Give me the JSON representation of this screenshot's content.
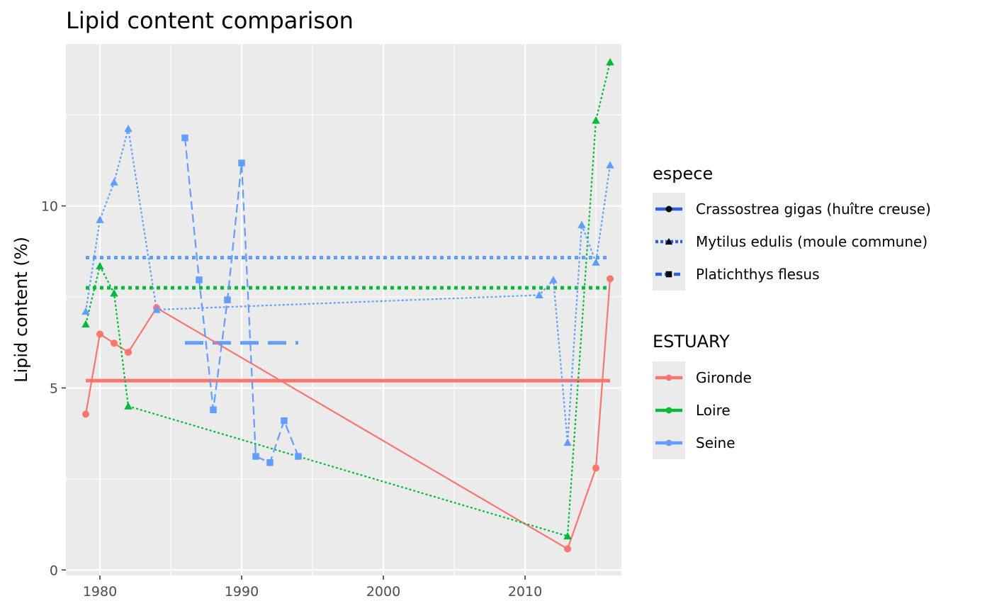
{
  "chart_data": {
    "type": "line",
    "title": "Lipid content comparison",
    "xlabel": "",
    "ylabel": "Lipid content (%)",
    "xlim": [
      1977.6,
      2016.8
    ],
    "ylim": [
      -0.15,
      14.45
    ],
    "x_ticks": [
      1980,
      1990,
      2000,
      2010
    ],
    "y_ticks": [
      0,
      5,
      10
    ],
    "grid": true,
    "legend_position": "right",
    "legends": [
      {
        "title": "espece",
        "entries": [
          {
            "label": "Crassostrea gigas (huître creuse)",
            "shape": "circle",
            "linetype": "solid"
          },
          {
            "label": "Mytilus edulis (moule commune)",
            "shape": "triangle",
            "linetype": "dotted"
          },
          {
            "label": "Platichthys flesus",
            "shape": "square",
            "linetype": "dashed"
          }
        ]
      },
      {
        "title": "ESTUARY",
        "entries": [
          {
            "label": "Gironde",
            "color": "#F8766D"
          },
          {
            "label": "Loire",
            "color": "#00BA38"
          },
          {
            "label": "Seine",
            "color": "#619CFF"
          }
        ]
      }
    ],
    "series": [
      {
        "estuary": "Gironde",
        "species": "Crassostrea gigas (huître creuse)",
        "color": "#F8766D",
        "shape": "circle",
        "linetype": "solid",
        "x": [
          1979,
          1980,
          1981,
          1982,
          1984,
          2013,
          2015,
          2016
        ],
        "y": [
          4.28,
          6.48,
          6.23,
          5.98,
          7.2,
          0.58,
          2.8,
          8.0
        ],
        "mean": 5.2,
        "mean_range": [
          1979,
          2016
        ]
      },
      {
        "estuary": "Loire",
        "species": "Mytilus edulis (moule commune)",
        "color": "#00BA38",
        "shape": "triangle",
        "linetype": "dotted",
        "x": [
          1979,
          1980,
          1981,
          1982,
          2013,
          2015,
          2016
        ],
        "y": [
          6.75,
          8.35,
          7.6,
          4.5,
          0.93,
          12.35,
          13.95
        ],
        "mean": 7.75,
        "mean_range": [
          1979,
          2016
        ]
      },
      {
        "estuary": "Seine",
        "species": "Mytilus edulis (moule commune)",
        "color": "#619CFF",
        "shape": "triangle",
        "linetype": "dotted",
        "x": [
          1979,
          1980,
          1981,
          1982,
          1984,
          2011,
          2012,
          2013,
          2014,
          2015,
          2016
        ],
        "y": [
          7.1,
          9.62,
          10.65,
          12.12,
          7.15,
          7.55,
          7.97,
          3.5,
          9.48,
          8.45,
          11.12
        ],
        "mean": 8.58,
        "mean_range": [
          1979,
          2016
        ]
      },
      {
        "estuary": "Seine",
        "species": "Platichthys flesus",
        "color": "#619CFF",
        "shape": "square",
        "linetype": "dashed",
        "x": [
          1986,
          1987,
          1988,
          1989,
          1990,
          1991,
          1992,
          1993,
          1994
        ],
        "y": [
          11.87,
          7.97,
          4.4,
          7.42,
          11.18,
          3.12,
          2.95,
          4.1,
          3.12
        ],
        "mean": 6.24,
        "mean_range": [
          1986,
          1994
        ]
      }
    ]
  }
}
